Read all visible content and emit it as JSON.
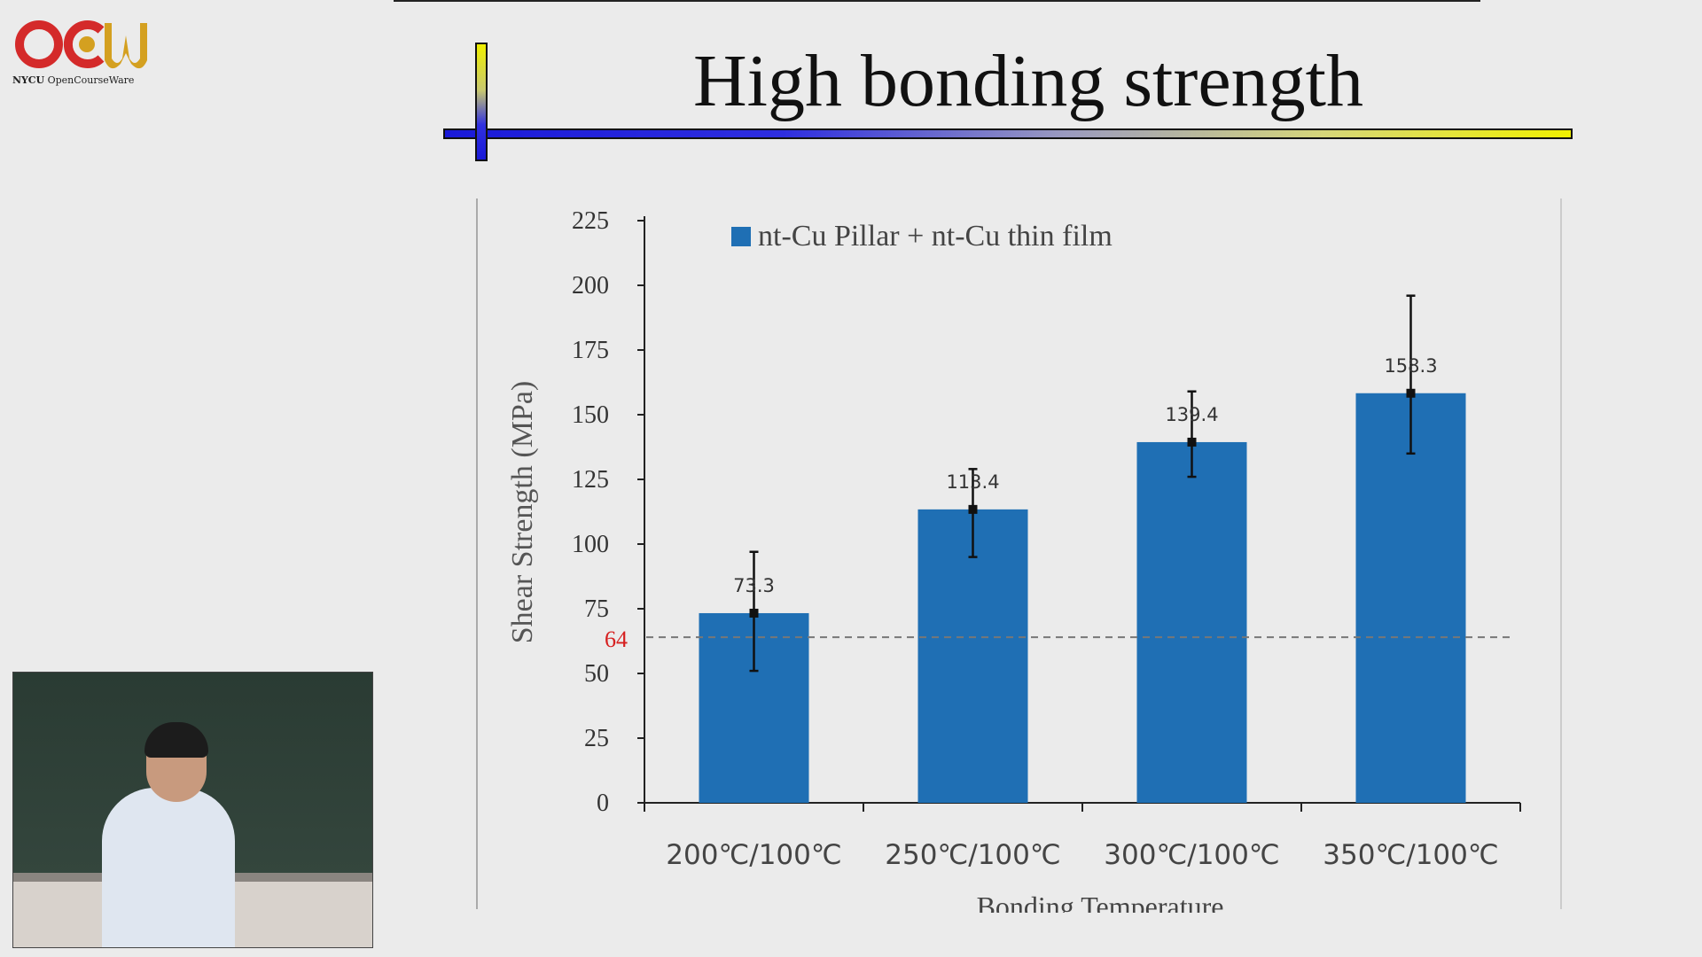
{
  "logo": {
    "brand": "OCW",
    "org": "NYCU",
    "tagline": "OpenCourseWare",
    "colors": {
      "o": "#d42a2a",
      "c": "#d42a2a",
      "w": "#d4a020"
    }
  },
  "slide": {
    "title": "High bonding strength"
  },
  "chart_data": {
    "type": "bar",
    "categories": [
      "200℃/100℃",
      "250℃/100℃",
      "300℃/100℃",
      "350℃/100℃"
    ],
    "series": [
      {
        "name": "nt-Cu Pillar + nt-Cu thin film",
        "values": [
          73.3,
          113.4,
          139.4,
          158.3
        ],
        "error_low": [
          51,
          95,
          126,
          135
        ],
        "error_high": [
          97,
          129,
          159,
          196
        ],
        "color": "#1f6fb4"
      }
    ],
    "value_labels": [
      "73.3",
      "113.4",
      "139.4",
      "158.3"
    ],
    "ylabel": "Shear Strength (MPa)",
    "xlabel": "Bonding Temperature",
    "ylim": [
      0,
      225
    ],
    "yticks": [
      0,
      25,
      50,
      75,
      100,
      125,
      150,
      175,
      200,
      225
    ],
    "reference_line": {
      "value": 64,
      "label": "64",
      "color": "#d62020",
      "style": "dashed"
    },
    "legend_position": "top-left",
    "grid": false
  }
}
